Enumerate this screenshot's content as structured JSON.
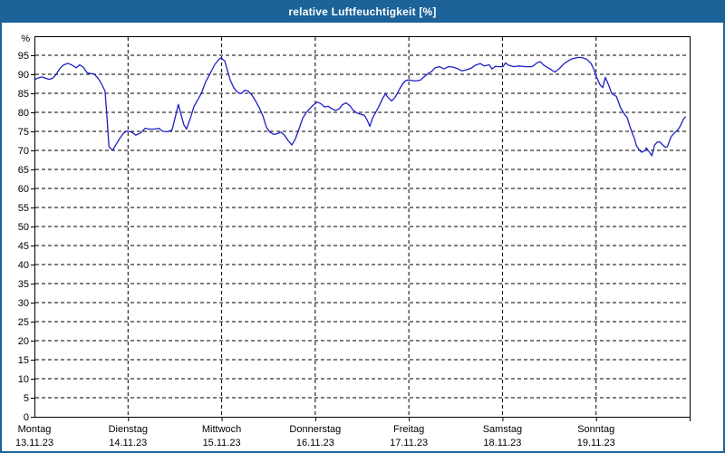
{
  "window": {
    "title": "relative Luftfeuchtigkeit [%]"
  },
  "colors": {
    "chrome": "#1b6398",
    "title_text": "#ffffff",
    "plot_background": "#ffffff",
    "axis": "#000000",
    "grid": "#000000",
    "line": "#2020c4",
    "label_text": "#000000"
  },
  "chart_data": {
    "type": "line",
    "title": "relative Luftfeuchtigkeit [%]",
    "ylabel": "%",
    "y_unit_label": "%",
    "ylim": [
      0,
      100
    ],
    "ytick_values": [
      0,
      5,
      10,
      15,
      20,
      25,
      30,
      35,
      40,
      45,
      50,
      55,
      60,
      65,
      70,
      75,
      80,
      85,
      90,
      95
    ],
    "x_unit": "hours since Montag 13.11.23 00:00",
    "xlim_hours": [
      0,
      168
    ],
    "day_boundary_ticks_hours": [
      24,
      48,
      72,
      96,
      120,
      144,
      168
    ],
    "grid": true,
    "legend_position": "none",
    "x_day_labels": [
      {
        "name": "Montag",
        "date": "13.11.23",
        "hour": 0
      },
      {
        "name": "Dienstag",
        "date": "14.11.23",
        "hour": 24
      },
      {
        "name": "Mittwoch",
        "date": "15.11.23",
        "hour": 48
      },
      {
        "name": "Donnerstag",
        "date": "16.11.23",
        "hour": 72
      },
      {
        "name": "Freitag",
        "date": "17.11.23",
        "hour": 96
      },
      {
        "name": "Samstag",
        "date": "18.11.23",
        "hour": 120
      },
      {
        "name": "Sonntag",
        "date": "19.11.23",
        "hour": 144
      }
    ],
    "series": [
      {
        "name": "relative Luftfeuchtigkeit",
        "color": "#2020c4",
        "points": [
          [
            0,
            88.6
          ],
          [
            0.9,
            89.0
          ],
          [
            1.9,
            89.3
          ],
          [
            2.8,
            89.0
          ],
          [
            3.7,
            88.7
          ],
          [
            4.6,
            88.9
          ],
          [
            5.6,
            90.0
          ],
          [
            6.5,
            91.5
          ],
          [
            7.4,
            92.4
          ],
          [
            8.6,
            92.9
          ],
          [
            9.8,
            92.3
          ],
          [
            10.7,
            91.7
          ],
          [
            11.6,
            92.5
          ],
          [
            12.5,
            91.9
          ],
          [
            13.5,
            90.4
          ],
          [
            14.4,
            90.2
          ],
          [
            15.3,
            90.1
          ],
          [
            16.3,
            89.0
          ],
          [
            17.2,
            87.5
          ],
          [
            18.1,
            85.6
          ],
          [
            18.6,
            79.0
          ],
          [
            19.1,
            71.0
          ],
          [
            20.0,
            70.0
          ],
          [
            20.9,
            71.5
          ],
          [
            21.8,
            73.0
          ],
          [
            22.8,
            74.5
          ],
          [
            23.7,
            75.1
          ],
          [
            24.9,
            74.8
          ],
          [
            26.0,
            74.0
          ],
          [
            27.2,
            74.6
          ],
          [
            28.4,
            75.8
          ],
          [
            29.5,
            75.6
          ],
          [
            30.7,
            75.6
          ],
          [
            31.8,
            75.8
          ],
          [
            33.0,
            75.0
          ],
          [
            34.2,
            74.9
          ],
          [
            35.3,
            75.4
          ],
          [
            36.3,
            79.5
          ],
          [
            36.9,
            82.1
          ],
          [
            37.6,
            79.4
          ],
          [
            38.3,
            76.8
          ],
          [
            39.0,
            75.6
          ],
          [
            40.0,
            78.5
          ],
          [
            40.9,
            81.5
          ],
          [
            41.8,
            83.2
          ],
          [
            42.8,
            85.0
          ],
          [
            43.9,
            88.0
          ],
          [
            45.1,
            90.3
          ],
          [
            46.2,
            92.5
          ],
          [
            47.2,
            93.8
          ],
          [
            47.8,
            94.3
          ],
          [
            48.8,
            93.5
          ],
          [
            49.5,
            91.0
          ],
          [
            50.2,
            88.5
          ],
          [
            51.1,
            86.5
          ],
          [
            52.0,
            85.3
          ],
          [
            53.0,
            84.9
          ],
          [
            53.9,
            85.8
          ],
          [
            54.8,
            85.6
          ],
          [
            55.8,
            84.5
          ],
          [
            56.7,
            83.0
          ],
          [
            57.6,
            81.3
          ],
          [
            58.6,
            79.0
          ],
          [
            59.5,
            76.0
          ],
          [
            60.4,
            74.8
          ],
          [
            61.4,
            74.2
          ],
          [
            62.3,
            74.4
          ],
          [
            63.2,
            74.8
          ],
          [
            64.1,
            74.0
          ],
          [
            65.1,
            72.5
          ],
          [
            66.0,
            71.4
          ],
          [
            66.9,
            73.0
          ],
          [
            67.9,
            75.8
          ],
          [
            68.8,
            78.5
          ],
          [
            69.7,
            80.0
          ],
          [
            70.6,
            81.0
          ],
          [
            71.6,
            82.0
          ],
          [
            72.5,
            82.7
          ],
          [
            73.4,
            82.3
          ],
          [
            74.4,
            81.4
          ],
          [
            75.3,
            81.6
          ],
          [
            76.2,
            81.0
          ],
          [
            77.2,
            80.5
          ],
          [
            78.1,
            80.9
          ],
          [
            79.0,
            82.0
          ],
          [
            79.9,
            82.5
          ],
          [
            80.9,
            81.7
          ],
          [
            81.8,
            80.5
          ],
          [
            82.7,
            79.8
          ],
          [
            83.7,
            79.5
          ],
          [
            84.6,
            79.2
          ],
          [
            85.3,
            78.0
          ],
          [
            86.0,
            76.3
          ],
          [
            86.7,
            78.5
          ],
          [
            87.4,
            79.8
          ],
          [
            88.3,
            81.5
          ],
          [
            89.2,
            83.5
          ],
          [
            90.0,
            84.9
          ],
          [
            90.6,
            84.0
          ],
          [
            91.6,
            83.0
          ],
          [
            92.5,
            84.0
          ],
          [
            93.4,
            85.7
          ],
          [
            94.4,
            87.5
          ],
          [
            95.3,
            88.4
          ],
          [
            96.2,
            88.5
          ],
          [
            97.1,
            88.3
          ],
          [
            98.1,
            88.3
          ],
          [
            99.0,
            88.5
          ],
          [
            99.9,
            89.3
          ],
          [
            100.9,
            90.2
          ],
          [
            101.8,
            90.7
          ],
          [
            102.7,
            91.7
          ],
          [
            103.9,
            92.0
          ],
          [
            105.0,
            91.4
          ],
          [
            106.2,
            92.0
          ],
          [
            107.3,
            91.9
          ],
          [
            108.5,
            91.5
          ],
          [
            109.6,
            90.9
          ],
          [
            110.8,
            91.2
          ],
          [
            112.0,
            91.6
          ],
          [
            113.1,
            92.4
          ],
          [
            114.3,
            92.8
          ],
          [
            115.4,
            92.2
          ],
          [
            116.6,
            92.5
          ],
          [
            117.3,
            91.4
          ],
          [
            118.2,
            92.1
          ],
          [
            119.1,
            92.0
          ],
          [
            120.1,
            92.0
          ],
          [
            120.8,
            93.0
          ],
          [
            121.5,
            92.4
          ],
          [
            122.9,
            92.0
          ],
          [
            124.3,
            92.2
          ],
          [
            125.9,
            92.0
          ],
          [
            127.6,
            92.0
          ],
          [
            129.0,
            93.1
          ],
          [
            129.7,
            93.3
          ],
          [
            130.6,
            92.4
          ],
          [
            132.2,
            91.4
          ],
          [
            133.4,
            90.6
          ],
          [
            134.5,
            91.4
          ],
          [
            135.9,
            92.9
          ],
          [
            137.6,
            94.0
          ],
          [
            139.2,
            94.4
          ],
          [
            140.4,
            94.4
          ],
          [
            141.5,
            94.0
          ],
          [
            142.7,
            92.9
          ],
          [
            143.4,
            91.4
          ],
          [
            144.1,
            89.3
          ],
          [
            145.0,
            87.3
          ],
          [
            145.7,
            86.5
          ],
          [
            146.4,
            89.2
          ],
          [
            147.3,
            87.0
          ],
          [
            148.0,
            85.0
          ],
          [
            149.2,
            84.2
          ],
          [
            150.3,
            81.2
          ],
          [
            151.3,
            79.5
          ],
          [
            152.0,
            78.6
          ],
          [
            152.7,
            76.2
          ],
          [
            153.4,
            74.2
          ],
          [
            153.9,
            73.0
          ],
          [
            154.3,
            71.4
          ],
          [
            155.0,
            70.2
          ],
          [
            155.7,
            69.5
          ],
          [
            156.6,
            70.0
          ],
          [
            156.9,
            70.7
          ],
          [
            157.3,
            70.0
          ],
          [
            157.8,
            69.4
          ],
          [
            158.3,
            68.6
          ],
          [
            159.0,
            71.4
          ],
          [
            159.7,
            72.2
          ],
          [
            160.4,
            72.2
          ],
          [
            161.1,
            71.4
          ],
          [
            161.8,
            70.8
          ],
          [
            162.3,
            71.0
          ],
          [
            163.0,
            73.0
          ],
          [
            163.4,
            73.8
          ],
          [
            164.1,
            74.6
          ],
          [
            165.0,
            75.4
          ],
          [
            165.7,
            76.6
          ],
          [
            166.4,
            78.2
          ],
          [
            166.9,
            78.8
          ]
        ]
      }
    ]
  }
}
